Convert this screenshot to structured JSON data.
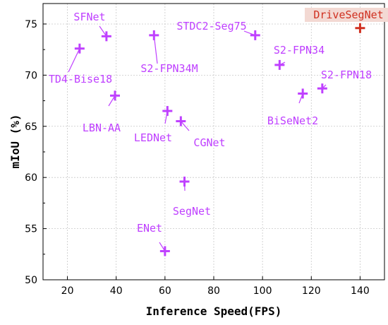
{
  "chart_data": {
    "type": "scatter",
    "title": "",
    "xlabel": "Inference Speed(FPS)",
    "ylabel": "mIoU (%)",
    "xlim": [
      10,
      150
    ],
    "ylim": [
      50,
      77
    ],
    "xticks": [
      20,
      40,
      60,
      80,
      100,
      120,
      140
    ],
    "yticks": [
      50,
      55,
      60,
      65,
      70,
      75
    ],
    "grid": true,
    "colors": {
      "baseline": "#bf40ff",
      "highlight": "#d03020",
      "label_highlight_bg": "#f3d9d3"
    },
    "points": [
      {
        "label": "SFNet",
        "x": 36,
        "y": 73.8,
        "highlight": false
      },
      {
        "label": "TD4-Bise18",
        "x": 25,
        "y": 72.6,
        "highlight": false
      },
      {
        "label": "S2-FPN34M",
        "x": 55.5,
        "y": 73.9,
        "highlight": false
      },
      {
        "label": "STDC2-Seg75",
        "x": 97,
        "y": 73.9,
        "highlight": false
      },
      {
        "label": "DriveSegNet",
        "x": 140,
        "y": 74.6,
        "highlight": true
      },
      {
        "label": "S2-FPN34",
        "x": 107,
        "y": 71.0,
        "highlight": false
      },
      {
        "label": "S2-FPN18",
        "x": 124.5,
        "y": 68.7,
        "highlight": false
      },
      {
        "label": "BiSeNet2",
        "x": 116.5,
        "y": 68.2,
        "highlight": false
      },
      {
        "label": "LBN-AA",
        "x": 39.5,
        "y": 68.0,
        "highlight": false
      },
      {
        "label": "LEDNet",
        "x": 61,
        "y": 66.5,
        "highlight": false
      },
      {
        "label": "CGNet",
        "x": 66.5,
        "y": 65.5,
        "highlight": false
      },
      {
        "label": "SegNet",
        "x": 68,
        "y": 59.6,
        "highlight": false
      },
      {
        "label": "ENet",
        "x": 60,
        "y": 52.8,
        "highlight": false
      }
    ]
  }
}
